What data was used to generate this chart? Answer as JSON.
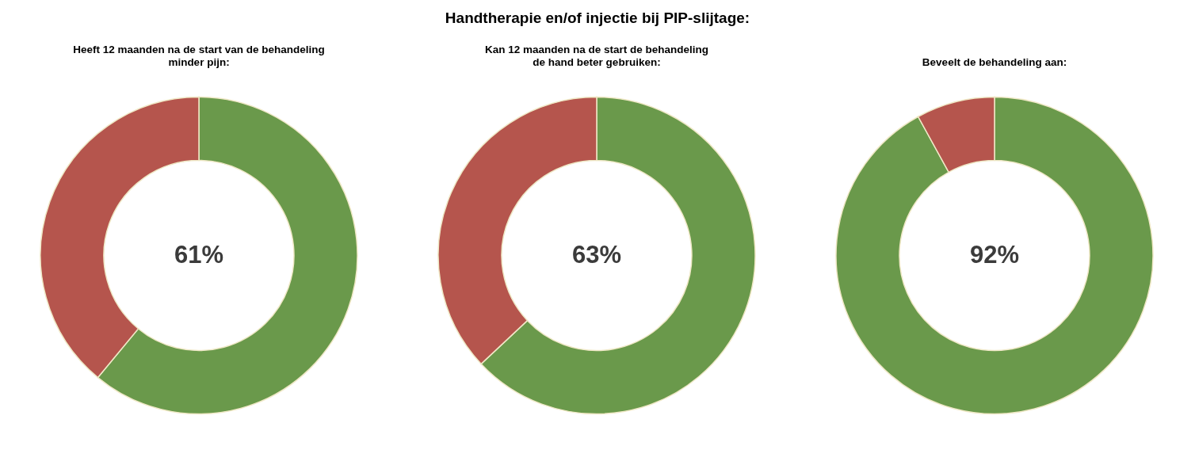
{
  "chart_data": [
    {
      "type": "other",
      "title": "Handtherapie en/of injectie bij PIP-slijtage:"
    },
    {
      "type": "donut",
      "subtitle": "Heeft 12 maanden na de start van de behandeling\nminder pijn:",
      "categories": [
        null,
        null
      ],
      "values": [
        61,
        39
      ],
      "colors": [
        "#6a994b",
        "#b5554d"
      ],
      "value_labels": [
        "61%",
        null
      ],
      "legend": false
    },
    {
      "type": "donut",
      "subtitle": "Kan 12 maanden na de start de behandeling\nde hand beter gebruiken:",
      "categories": [
        null,
        null
      ],
      "values": [
        63,
        37
      ],
      "colors": [
        "#6a994b",
        "#b5554d"
      ],
      "value_labels": [
        "63%",
        null
      ],
      "legend": false
    },
    {
      "type": "donut",
      "subtitle": "Beveelt de behandeling aan:",
      "categories": [
        null,
        null
      ],
      "values": [
        92,
        8
      ],
      "colors": [
        "#6a994b",
        "#b5554d"
      ],
      "value_labels": [
        "92%",
        null
      ],
      "legend": false
    }
  ]
}
